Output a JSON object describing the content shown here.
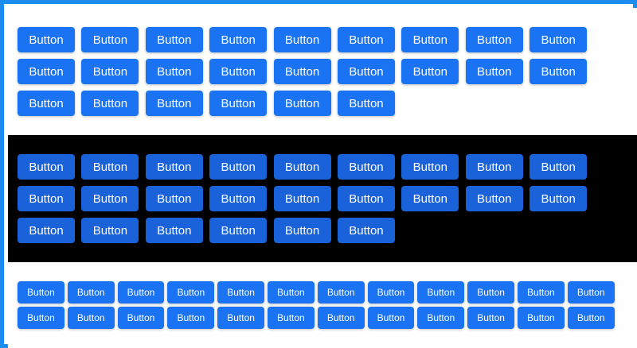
{
  "sections": [
    {
      "theme": "light",
      "size": "regular",
      "button_label": "Button",
      "button_count": 24
    },
    {
      "theme": "dark",
      "size": "regular",
      "button_label": "Button",
      "button_count": 24
    },
    {
      "theme": "light",
      "size": "small",
      "button_label": "Button",
      "button_count": 24
    }
  ],
  "colors": {
    "frame_border": "#1b8cf0",
    "button_bg": "#1a73f2",
    "button_bg_dark_section": "#1a62d9",
    "dark_section_bg": "#000000",
    "button_text": "#ffffff"
  }
}
